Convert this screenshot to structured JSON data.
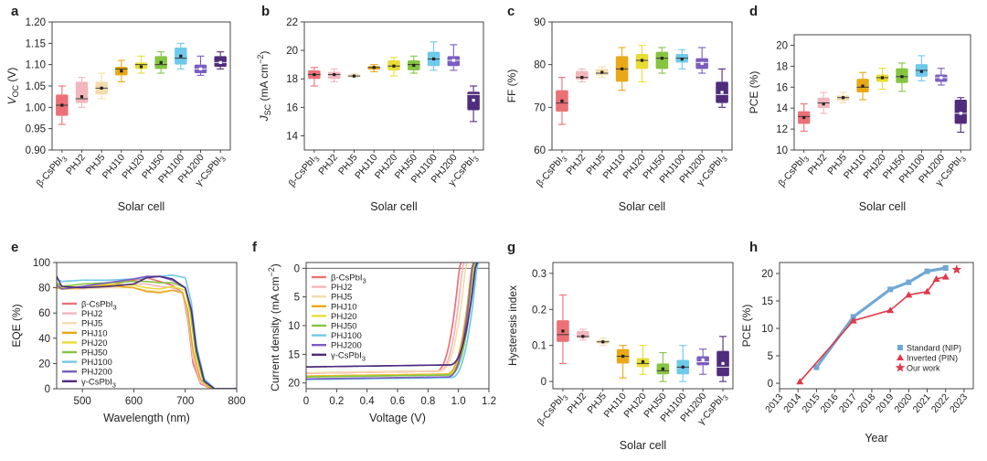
{
  "colors": [
    "#ec7077",
    "#f2b6bd",
    "#f5dcae",
    "#e8a817",
    "#e8dd33",
    "#86c442",
    "#6fc9ea",
    "#7b5ec0",
    "#4f2c7c"
  ],
  "sample_labels": [
    "β-CsPbI3",
    "PHJ2",
    "PHJ5",
    "PHJ10",
    "PHJ20",
    "PHJ50",
    "PHJ100",
    "PHJ200",
    "γ-CsPbI3"
  ],
  "chart_data": [
    {
      "id": "a",
      "panel_label": "a",
      "type": "box",
      "xlabel": "Solar cell",
      "ylabel": "V",
      "ylabel_sub": "OC",
      "ylabel_tail": " (V)",
      "ylim": [
        0.9,
        1.2
      ],
      "yticks": [
        "0.90",
        "0.95",
        "1.00",
        "1.05",
        "1.10",
        "1.15",
        "1.20"
      ],
      "boxes": [
        {
          "min": 0.96,
          "q1": 0.98,
          "median": 1.005,
          "q3": 1.03,
          "max": 1.05,
          "mean": 1.005
        },
        {
          "min": 1.0,
          "q1": 1.01,
          "median": 1.02,
          "q3": 1.06,
          "max": 1.07,
          "mean": 1.025
        },
        {
          "min": 1.02,
          "q1": 1.03,
          "median": 1.045,
          "q3": 1.06,
          "max": 1.08,
          "mean": 1.045
        },
        {
          "min": 1.06,
          "q1": 1.075,
          "median": 1.09,
          "q3": 1.095,
          "max": 1.11,
          "mean": 1.085
        },
        {
          "min": 1.08,
          "q1": 1.09,
          "median": 1.1,
          "q3": 1.105,
          "max": 1.12,
          "mean": 1.095
        },
        {
          "min": 1.08,
          "q1": 1.09,
          "median": 1.1,
          "q3": 1.12,
          "max": 1.13,
          "mean": 1.105
        },
        {
          "min": 1.09,
          "q1": 1.1,
          "median": 1.115,
          "q3": 1.14,
          "max": 1.15,
          "mean": 1.12
        },
        {
          "min": 1.075,
          "q1": 1.08,
          "median": 1.09,
          "q3": 1.1,
          "max": 1.12,
          "mean": 1.09
        },
        {
          "min": 1.09,
          "q1": 1.095,
          "median": 1.105,
          "q3": 1.12,
          "max": 1.13,
          "mean": 1.105
        }
      ]
    },
    {
      "id": "b",
      "panel_label": "b",
      "type": "box",
      "xlabel": "Solar cell",
      "ylabel": "J",
      "ylabel_sub": "SC",
      "ylabel_tail": " (mA cm",
      "ylabel_sup": "−2",
      "ylabel_end": ")",
      "ylim": [
        13,
        22
      ],
      "yticks": [
        "14",
        "16",
        "18",
        "20",
        "22"
      ],
      "ytick_values": [
        14,
        16,
        18,
        20,
        22
      ],
      "boxes": [
        {
          "min": 17.5,
          "q1": 18.0,
          "median": 18.3,
          "q3": 18.6,
          "max": 18.8,
          "mean": 18.3
        },
        {
          "min": 17.8,
          "q1": 18.0,
          "median": 18.3,
          "q3": 18.5,
          "max": 18.7,
          "mean": 18.3
        },
        {
          "min": 18.1,
          "q1": 18.15,
          "median": 18.2,
          "q3": 18.3,
          "max": 18.35,
          "mean": 18.2
        },
        {
          "min": 18.5,
          "q1": 18.65,
          "median": 18.8,
          "q3": 18.9,
          "max": 19.0,
          "mean": 18.8
        },
        {
          "min": 18.2,
          "q1": 18.6,
          "median": 18.9,
          "q3": 19.3,
          "max": 19.5,
          "mean": 18.9
        },
        {
          "min": 18.4,
          "q1": 18.6,
          "median": 19.0,
          "q3": 19.3,
          "max": 19.6,
          "mean": 18.95
        },
        {
          "min": 18.6,
          "q1": 18.9,
          "median": 19.4,
          "q3": 19.9,
          "max": 20.6,
          "mean": 19.4
        },
        {
          "min": 18.6,
          "q1": 18.9,
          "median": 19.3,
          "q3": 19.6,
          "max": 20.4,
          "mean": 19.3
        },
        {
          "min": 15.0,
          "q1": 15.8,
          "median": 16.9,
          "q3": 17.1,
          "max": 17.5,
          "mean": 16.5
        }
      ]
    },
    {
      "id": "c",
      "panel_label": "c",
      "type": "box",
      "xlabel": "Solar cell",
      "ylabel": "FF (%)",
      "ylim": [
        60,
        90
      ],
      "yticks": [
        "60",
        "70",
        "80",
        "90"
      ],
      "ytick_values": [
        60,
        70,
        80,
        90
      ],
      "boxes": [
        {
          "min": 66,
          "q1": 69,
          "median": 71,
          "q3": 74,
          "max": 77,
          "mean": 71.5
        },
        {
          "min": 76,
          "q1": 76.5,
          "median": 77,
          "q3": 78.5,
          "max": 79,
          "mean": 77
        },
        {
          "min": 77,
          "q1": 77.5,
          "median": 78,
          "q3": 79,
          "max": 79.5,
          "mean": 78.2
        },
        {
          "min": 74,
          "q1": 76,
          "median": 79,
          "q3": 82,
          "max": 84,
          "mean": 79
        },
        {
          "min": 76,
          "q1": 79,
          "median": 81,
          "q3": 82.5,
          "max": 84.5,
          "mean": 81
        },
        {
          "min": 78,
          "q1": 79,
          "median": 81.5,
          "q3": 83,
          "max": 84,
          "mean": 81.5
        },
        {
          "min": 79,
          "q1": 80.5,
          "median": 81.5,
          "q3": 82.5,
          "max": 83.5,
          "mean": 81.3
        },
        {
          "min": 78,
          "q1": 79,
          "median": 80.5,
          "q3": 81.5,
          "max": 84,
          "mean": 80.3
        },
        {
          "min": 70,
          "q1": 71,
          "median": 73,
          "q3": 76,
          "max": 79,
          "mean": 73.5
        }
      ]
    },
    {
      "id": "d",
      "panel_label": "d",
      "type": "box",
      "xlabel": "Solar cell",
      "ylabel": "PCE (%)",
      "ylim": [
        10,
        21
      ],
      "yticks": [
        "10",
        "12",
        "14",
        "16",
        "18",
        "20"
      ],
      "ytick_values": [
        10,
        12,
        14,
        16,
        18,
        20
      ],
      "boxes": [
        {
          "min": 11.8,
          "q1": 12.5,
          "median": 13.2,
          "q3": 13.7,
          "max": 14.4,
          "mean": 13.1
        },
        {
          "min": 13.5,
          "q1": 14.0,
          "median": 14.5,
          "q3": 15.0,
          "max": 15.5,
          "mean": 14.4
        },
        {
          "min": 14.5,
          "q1": 14.7,
          "median": 15.0,
          "q3": 15.2,
          "max": 15.5,
          "mean": 15.0
        },
        {
          "min": 14.8,
          "q1": 15.5,
          "median": 16.0,
          "q3": 16.8,
          "max": 17.4,
          "mean": 16.1
        },
        {
          "min": 15.8,
          "q1": 16.5,
          "median": 16.9,
          "q3": 17.2,
          "max": 17.8,
          "mean": 16.9
        },
        {
          "min": 15.6,
          "q1": 16.4,
          "median": 17.0,
          "q3": 17.8,
          "max": 18.3,
          "mean": 17.0
        },
        {
          "min": 16.6,
          "q1": 17.0,
          "median": 17.6,
          "q3": 18.2,
          "max": 19.0,
          "mean": 17.5
        },
        {
          "min": 16.2,
          "q1": 16.5,
          "median": 16.9,
          "q3": 17.2,
          "max": 17.8,
          "mean": 16.9
        },
        {
          "min": 11.7,
          "q1": 12.5,
          "median": 13.5,
          "q3": 14.8,
          "max": 15.0,
          "mean": 13.5
        }
      ]
    },
    {
      "id": "e",
      "panel_label": "e",
      "type": "line",
      "xlabel": "Wavelength (nm)",
      "ylabel": "EQE (%)",
      "xlim": [
        450,
        800
      ],
      "ylim": [
        0,
        100
      ],
      "xticks": [
        "500",
        "600",
        "700",
        "800"
      ],
      "xtick_values": [
        500,
        600,
        700,
        800
      ],
      "yticks": [
        "0",
        "20",
        "40",
        "60",
        "80",
        "100"
      ],
      "ytick_values": [
        0,
        20,
        40,
        60,
        80,
        100
      ],
      "legend": [
        "β-CsPbI",
        "PHJ2",
        "PHJ5",
        "PHJ10",
        "PHJ20",
        "PHJ50",
        "PHJ100",
        "PHJ200",
        "γ-CsPbI"
      ],
      "legend_sub": [
        "3",
        "",
        "",
        "",
        "",
        "",
        "",
        "",
        "3"
      ],
      "legend_placement": "middle-left",
      "series": [
        {
          "x": [
            450,
            460,
            500,
            550,
            600,
            625,
            650,
            675,
            695,
            705,
            715,
            730,
            750,
            800
          ],
          "y": [
            82,
            80,
            80,
            82,
            86,
            88,
            85,
            82,
            76,
            55,
            20,
            4,
            0,
            0
          ]
        },
        {
          "x": [
            450,
            460,
            500,
            550,
            600,
            625,
            650,
            675,
            695,
            705,
            715,
            730,
            750,
            800
          ],
          "y": [
            81,
            79,
            80,
            81,
            83,
            83,
            81,
            80,
            76,
            58,
            24,
            5,
            0,
            0
          ]
        },
        {
          "x": [
            450,
            460,
            500,
            550,
            600,
            625,
            650,
            675,
            695,
            705,
            715,
            730,
            750,
            800
          ],
          "y": [
            81,
            79,
            79,
            80,
            80,
            78,
            77,
            78,
            76,
            60,
            28,
            6,
            0,
            0
          ]
        },
        {
          "x": [
            450,
            460,
            500,
            550,
            600,
            625,
            650,
            675,
            695,
            705,
            715,
            730,
            750,
            800
          ],
          "y": [
            80,
            79,
            80,
            82,
            80,
            77,
            76,
            78,
            76,
            62,
            30,
            7,
            0,
            0
          ]
        },
        {
          "x": [
            450,
            460,
            500,
            550,
            600,
            625,
            650,
            675,
            700,
            710,
            720,
            735,
            755,
            800
          ],
          "y": [
            83,
            80,
            81,
            83,
            82,
            80,
            79,
            81,
            78,
            60,
            28,
            6,
            0,
            0
          ]
        },
        {
          "x": [
            450,
            460,
            500,
            550,
            600,
            625,
            650,
            675,
            700,
            710,
            720,
            735,
            755,
            800
          ],
          "y": [
            84,
            81,
            83,
            84,
            85,
            85,
            84,
            84,
            80,
            62,
            30,
            6,
            0,
            0
          ]
        },
        {
          "x": [
            450,
            460,
            500,
            550,
            600,
            625,
            650,
            675,
            700,
            712,
            722,
            737,
            757,
            800
          ],
          "y": [
            87,
            85,
            86,
            86,
            87,
            88,
            89,
            90,
            88,
            68,
            34,
            8,
            0,
            0
          ]
        },
        {
          "x": [
            450,
            460,
            500,
            550,
            600,
            625,
            650,
            675,
            700,
            712,
            722,
            737,
            757,
            800
          ],
          "y": [
            82,
            79,
            81,
            84,
            87,
            89,
            89,
            86,
            80,
            62,
            30,
            6,
            0,
            0
          ]
        },
        {
          "x": [
            450,
            460,
            500,
            550,
            600,
            625,
            650,
            675,
            700,
            712,
            722,
            737,
            757,
            800
          ],
          "y": [
            89,
            81,
            80,
            81,
            83,
            88,
            89,
            87,
            80,
            62,
            30,
            6,
            0,
            0
          ]
        }
      ]
    },
    {
      "id": "f",
      "panel_label": "f",
      "type": "line",
      "xlabel": "Voltage (V)",
      "ylabel": "Current density (mA cm",
      "ylabel_sup": "−2",
      "ylabel_end": ")",
      "xlim": [
        0,
        1.2
      ],
      "ylim": [
        21,
        -1
      ],
      "y_inverted": true,
      "xticks": [
        "0",
        "0.2",
        "0.4",
        "0.6",
        "0.8",
        "1.0",
        "1.2"
      ],
      "xtick_values": [
        0,
        0.2,
        0.4,
        0.6,
        0.8,
        1.0,
        1.2
      ],
      "yticks": [
        "0",
        "5",
        "10",
        "15",
        "20"
      ],
      "ytick_values": [
        0,
        5,
        10,
        15,
        20
      ],
      "legend": [
        "β-CsPbI",
        "PHJ2",
        "PHJ5",
        "PHJ10",
        "PHJ20",
        "PHJ50",
        "PHJ100",
        "PHJ200",
        "γ-CsPbI"
      ],
      "legend_sub": [
        "3",
        "",
        "",
        "",
        "",
        "",
        "",
        "",
        "3"
      ],
      "legend_placement": "top-left",
      "series": [
        {
          "jsc": 18.3,
          "voc": 1.005,
          "knee": 0.85
        },
        {
          "jsc": 18.3,
          "voc": 1.025,
          "knee": 0.87
        },
        {
          "jsc": 18.2,
          "voc": 1.045,
          "knee": 0.88
        },
        {
          "jsc": 18.8,
          "voc": 1.085,
          "knee": 0.92
        },
        {
          "jsc": 18.9,
          "voc": 1.095,
          "knee": 0.93
        },
        {
          "jsc": 18.95,
          "voc": 1.105,
          "knee": 0.94
        },
        {
          "jsc": 19.4,
          "voc": 1.12,
          "knee": 0.95
        },
        {
          "jsc": 19.3,
          "voc": 1.09,
          "knee": 0.93
        },
        {
          "jsc": 17.2,
          "voc": 1.11,
          "knee": 0.94
        }
      ]
    },
    {
      "id": "g",
      "panel_label": "g",
      "type": "box",
      "xlabel": "Solar cell",
      "ylabel": "Hysteresis index",
      "ylim": [
        -0.02,
        0.33
      ],
      "yticks": [
        "0",
        "0.1",
        "0.2",
        "0.3"
      ],
      "ytick_values": [
        0,
        0.1,
        0.2,
        0.3
      ],
      "boxes": [
        {
          "min": 0.05,
          "q1": 0.11,
          "median": 0.13,
          "q3": 0.17,
          "max": 0.24,
          "mean": 0.14
        },
        {
          "min": 0.115,
          "q1": 0.12,
          "median": 0.125,
          "q3": 0.14,
          "max": 0.145,
          "mean": 0.125
        },
        {
          "min": 0.1,
          "q1": 0.105,
          "median": 0.11,
          "q3": 0.115,
          "max": 0.12,
          "mean": 0.11
        },
        {
          "min": 0.01,
          "q1": 0.05,
          "median": 0.07,
          "q3": 0.09,
          "max": 0.1,
          "mean": 0.07
        },
        {
          "min": 0.02,
          "q1": 0.04,
          "median": 0.05,
          "q3": 0.065,
          "max": 0.1,
          "mean": 0.055
        },
        {
          "min": 0.0,
          "q1": 0.02,
          "median": 0.03,
          "q3": 0.05,
          "max": 0.08,
          "mean": 0.035
        },
        {
          "min": 0.0,
          "q1": 0.02,
          "median": 0.04,
          "q3": 0.06,
          "max": 0.1,
          "mean": 0.04
        },
        {
          "min": 0.02,
          "q1": 0.045,
          "median": 0.055,
          "q3": 0.07,
          "max": 0.09,
          "mean": 0.06
        },
        {
          "min": 0.0,
          "q1": 0.015,
          "median": 0.04,
          "q3": 0.085,
          "max": 0.125,
          "mean": 0.05
        }
      ]
    },
    {
      "id": "h",
      "panel_label": "h",
      "type": "line",
      "xlabel": "Year",
      "ylabel": "PCE (%)",
      "xlim": [
        2013,
        2023.5
      ],
      "ylim": [
        -1,
        22
      ],
      "xticks": [
        "2013",
        "2014",
        "2015",
        "2016",
        "2017",
        "2018",
        "2019",
        "2020",
        "2021",
        "2022",
        "2023"
      ],
      "xtick_values": [
        2013,
        2014,
        2015,
        2016,
        2017,
        2018,
        2019,
        2020,
        2021,
        2022,
        2023
      ],
      "yticks": [
        "0",
        "5",
        "10",
        "15",
        "20"
      ],
      "ytick_values": [
        0,
        5,
        10,
        15,
        20
      ],
      "legend_placement": "bottom-right",
      "series": [
        {
          "name": "Standard (NIP)",
          "color": "#6fa8d6",
          "marker": "square",
          "x": [
            2015,
            2017,
            2019,
            2020,
            2021,
            2022
          ],
          "y": [
            2.9,
            12.1,
            17.1,
            18.4,
            20.4,
            21.0
          ]
        },
        {
          "name": "Inverted (PIN)",
          "color": "#e0394a",
          "marker": "triangle",
          "x": [
            2014.1,
            2017,
            2019,
            2020,
            2021,
            2021.5,
            2022
          ],
          "y": [
            0.3,
            11.4,
            13.3,
            16.1,
            16.7,
            19.0,
            19.4
          ]
        },
        {
          "name": "Our work",
          "color": "#e0394a",
          "marker": "star",
          "x": [
            2022.6
          ],
          "y": [
            20.7
          ]
        }
      ]
    }
  ]
}
